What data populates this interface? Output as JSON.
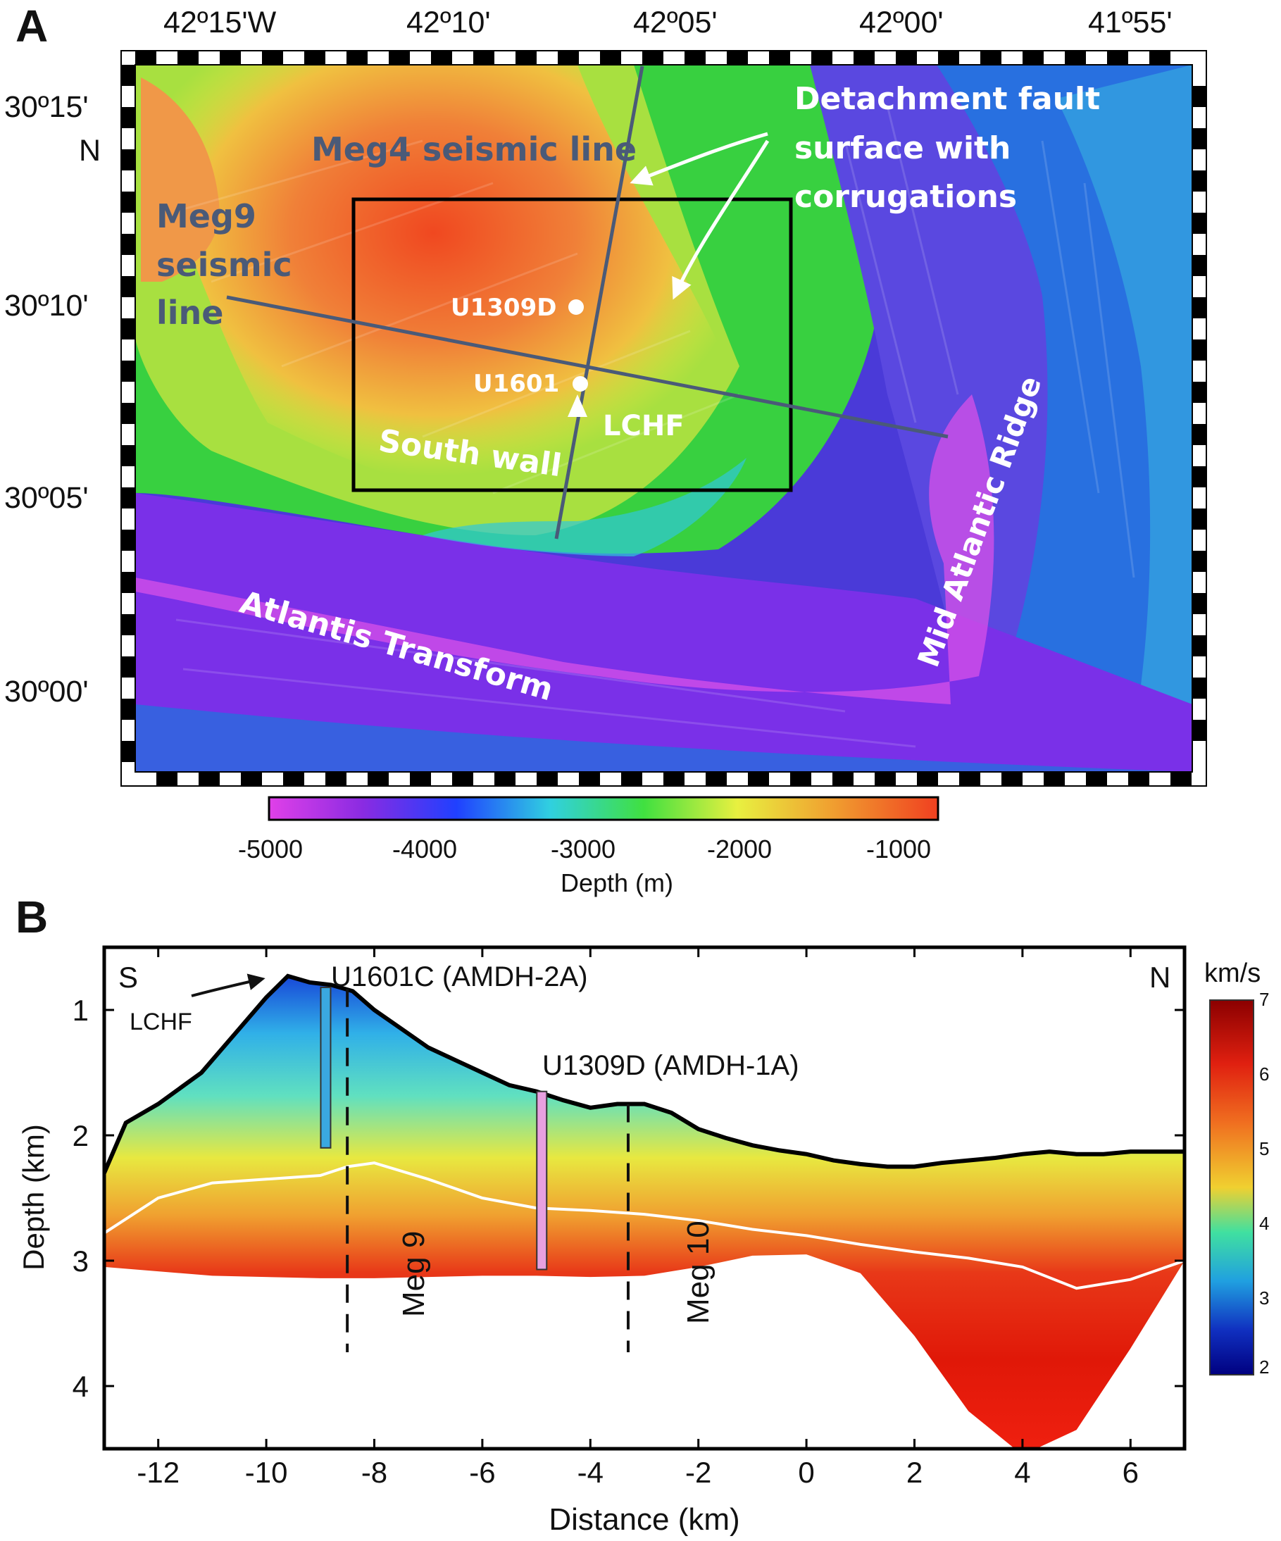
{
  "panel_a": {
    "letter": "A",
    "top_labels": [
      "42º15'W",
      "42º10'",
      "42º05'",
      "42º00'",
      "41º55'"
    ],
    "left_labels": [
      "30º15'",
      "N",
      "30º10'",
      "30º05'",
      "30º00'"
    ],
    "annotations": {
      "meg4": "Meg4 seismic line",
      "meg9": [
        "Meg9",
        "seismic",
        "line"
      ],
      "detachment": [
        "Detachment fault",
        "surface with",
        "corrugations"
      ],
      "u1309d": "U1309D",
      "u1601": "U1601",
      "lchf": "LCHF",
      "south_wall": "South wall",
      "atlantis": "Atlantis Transform",
      "mar": "Mid Atlantic Ridge"
    },
    "colorbar": {
      "ticks": [
        "-5000",
        "-4000",
        "-3000",
        "-2000",
        "-1000"
      ],
      "label": "Depth (m)",
      "colors": [
        "#e040e8",
        "#8a2be2",
        "#2040ff",
        "#30d0e0",
        "#40e040",
        "#e8f040",
        "#f0a030",
        "#f04020"
      ]
    }
  },
  "panel_b": {
    "letter": "B",
    "labels": {
      "s": "S",
      "n": "N",
      "lchf": "LCHF",
      "u1601c": "U1601C (AMDH-2A)",
      "u1309d": "U1309D (AMDH-1A)",
      "meg9": "Meg 9",
      "meg10": "Meg 10"
    },
    "colorbar": {
      "unit": "km/s",
      "ticks": [
        "7",
        "6",
        "5",
        "4",
        "3",
        "2"
      ],
      "colors": [
        "#8b0000",
        "#e02010",
        "#f07020",
        "#f0d030",
        "#40e0a0",
        "#20a0e0",
        "#1030c0",
        "#000080"
      ]
    }
  },
  "chart_data": {
    "type": "area",
    "xlabel": "Distance (km)",
    "ylabel": "Depth (km)",
    "x_ticks": [
      -12,
      -10,
      -8,
      -6,
      -4,
      -2,
      0,
      2,
      4,
      6
    ],
    "y_ticks": [
      1,
      2,
      3,
      4
    ],
    "xlim": [
      -13,
      7
    ],
    "ylim": [
      4.5,
      0.5
    ],
    "seafloor": {
      "x": [
        -13,
        -12.6,
        -12,
        -11.2,
        -10.5,
        -10,
        -9.6,
        -9.2,
        -8.8,
        -8.4,
        -8,
        -7.5,
        -7,
        -6.5,
        -6,
        -5.5,
        -5,
        -4.5,
        -4,
        -3.5,
        -3,
        -2.5,
        -2,
        -1.5,
        -1,
        -0.5,
        0,
        0.5,
        1,
        1.5,
        2,
        2.5,
        3,
        3.5,
        4,
        4.5,
        5,
        5.5,
        6,
        6.5,
        7
      ],
      "y": [
        2.3,
        1.9,
        1.75,
        1.5,
        1.15,
        0.9,
        0.73,
        0.78,
        0.8,
        0.85,
        1.0,
        1.15,
        1.3,
        1.4,
        1.5,
        1.6,
        1.65,
        1.72,
        1.78,
        1.75,
        1.75,
        1.82,
        1.95,
        2.02,
        2.08,
        2.12,
        2.15,
        2.2,
        2.23,
        2.25,
        2.25,
        2.22,
        2.2,
        2.18,
        2.15,
        2.13,
        2.15,
        2.15,
        2.13,
        2.13,
        2.13
      ]
    },
    "model_bottom": {
      "x": [
        -13,
        -11,
        -9,
        -8,
        -7,
        -6,
        -5,
        -4,
        -3,
        -2,
        -1,
        0,
        1,
        2,
        3,
        4,
        5,
        6,
        7
      ],
      "y": [
        3.05,
        3.12,
        3.14,
        3.14,
        3.13,
        3.12,
        3.12,
        3.13,
        3.12,
        3.05,
        2.96,
        2.95,
        3.1,
        3.6,
        4.2,
        4.55,
        4.35,
        3.7,
        3.0
      ]
    },
    "white_line": {
      "x": [
        -13,
        -12,
        -11,
        -10,
        -9,
        -8.5,
        -8,
        -7,
        -6,
        -5,
        -4,
        -3,
        -2,
        -1,
        0,
        1,
        2,
        3,
        4,
        5,
        6,
        7
      ],
      "y": [
        2.78,
        2.5,
        2.38,
        2.35,
        2.32,
        2.25,
        2.22,
        2.35,
        2.5,
        2.58,
        2.6,
        2.63,
        2.68,
        2.75,
        2.8,
        2.87,
        2.93,
        2.98,
        3.05,
        3.22,
        3.15,
        3.0
      ]
    },
    "boreholes": [
      {
        "name": "U1601C (AMDH-2A)",
        "x": -8.9,
        "top": 0.82,
        "bottom": 2.1,
        "color": "#3aa8e0"
      },
      {
        "name": "U1309D (AMDH-1A)",
        "x": -4.9,
        "top": 1.65,
        "bottom": 3.07,
        "color": "#e8a0e0"
      }
    ],
    "seismic_lines": [
      {
        "name": "Meg 9",
        "x": -8.5
      },
      {
        "name": "Meg 10",
        "x": -3.3
      }
    ],
    "legend": "none",
    "grid": false
  }
}
